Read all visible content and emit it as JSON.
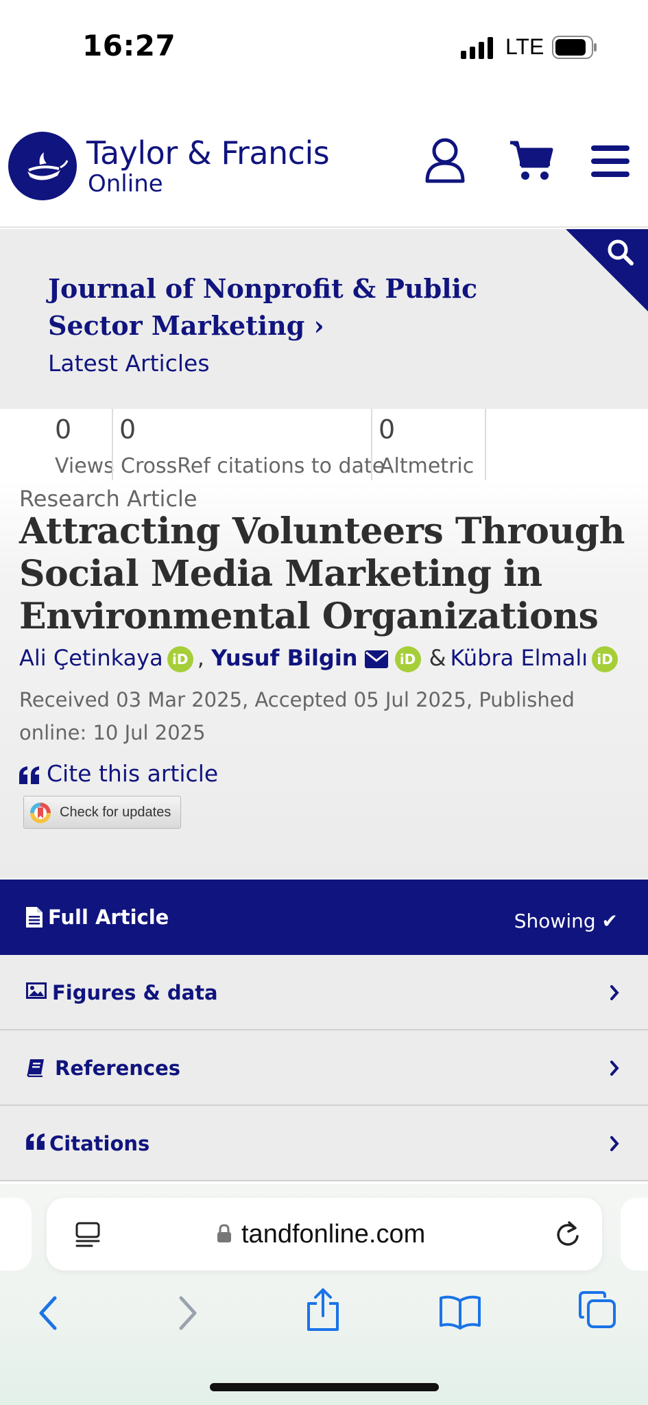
{
  "status_bar": {
    "time": "16:27",
    "network": "LTE"
  },
  "header": {
    "brand_main": "Taylor & Francis",
    "brand_sub": "Online",
    "icons": [
      "user-icon",
      "cart-icon",
      "menu-icon"
    ]
  },
  "journal": {
    "title": "Journal of Nonprofit & Public Sector Marketing",
    "chevron": "›",
    "latest_articles": "Latest Articles"
  },
  "metrics": [
    {
      "value": "0",
      "label": "Views"
    },
    {
      "value": "0",
      "label": "CrossRef citations to date"
    },
    {
      "value": "0",
      "label": "Altmetric"
    }
  ],
  "article": {
    "type": "Research Article",
    "title": "Attracting Volunteers Through Social Media Marketing in Environmental Organizations",
    "authors": [
      {
        "name": "Ali Çetinkaya"
      },
      {
        "name": "Yusuf Bilgin"
      },
      {
        "name": "Kübra Elmalı"
      }
    ],
    "separator_comma": ",",
    "separator_amp": "&",
    "orcid_label": "iD",
    "dates": "Received 03 Mar 2025, Accepted 05 Jul 2025, Published online: 10 Jul 2025",
    "cite_label": "Cite this article",
    "updates_label": "Check for updates"
  },
  "tabs": {
    "full_article": "Full Article",
    "showing": "Showing ✔",
    "figures": "Figures & data",
    "references": "References",
    "citations": "Citations"
  },
  "browser": {
    "url": "tandfonline.com"
  },
  "colors": {
    "brand_navy": "#10147e",
    "orcid_green": "#a6ce39",
    "ios_blue": "#1a73e8"
  }
}
